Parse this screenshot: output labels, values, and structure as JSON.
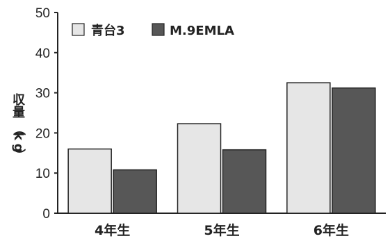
{
  "chart_data": {
    "type": "bar",
    "categories": [
      "4年生",
      "5年生",
      "6年生"
    ],
    "series": [
      {
        "name": "青台3",
        "values": [
          16,
          22.3,
          32.5
        ],
        "color": "#e6e6e6"
      },
      {
        "name": "M.9EMLA",
        "values": [
          10.8,
          15.8,
          31.2
        ],
        "color": "#575757"
      }
    ],
    "ylabel_chars": [
      "収",
      "量",
      "（",
      "k",
      "g",
      "）"
    ],
    "ylim": [
      0,
      50
    ],
    "yticks": [
      0,
      10,
      20,
      30,
      40,
      50
    ],
    "grid": false,
    "legend": "top-left"
  }
}
